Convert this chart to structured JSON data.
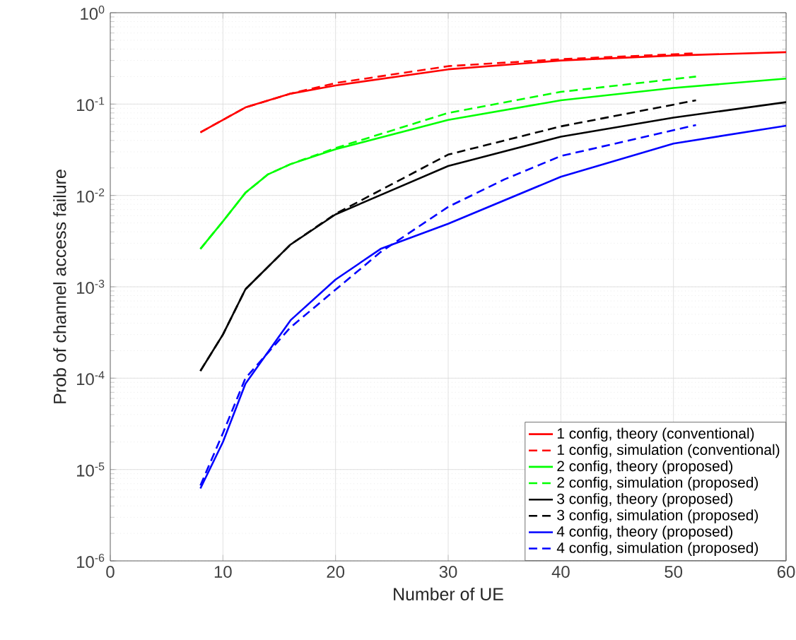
{
  "chart_data": {
    "type": "line",
    "xlabel": "Number of UE",
    "ylabel": "Prob of channel access failure",
    "log": "y",
    "grid": true,
    "legend": "bottom right",
    "xlim": [
      0,
      60
    ],
    "xticks": [
      0,
      10,
      20,
      30,
      40,
      50,
      60
    ],
    "ylim": [
      1e-06,
      1
    ],
    "yticks": [
      {
        "value": 1e-06,
        "label": "10$^{-6}$"
      },
      {
        "value": 1e-05,
        "label": "10$^{-5}$"
      },
      {
        "value": 0.0001,
        "label": "10$^{-4}$"
      },
      {
        "value": 0.001,
        "label": "10$^{-3}$"
      },
      {
        "value": 0.01,
        "label": "10$^{-2}$"
      },
      {
        "value": 0.1,
        "label": "10$^{-1}$"
      },
      {
        "value": 1,
        "label": "10$^{0}$"
      }
    ],
    "series": [
      {
        "name": "1 config, theory (conventional)",
        "color": "#ff0000",
        "line_style": "solid",
        "x": [
          8,
          12,
          16,
          20,
          30,
          40,
          50,
          60
        ],
        "values": [
          0.049,
          0.092,
          0.13,
          0.16,
          0.24,
          0.3,
          0.34,
          0.37
        ]
      },
      {
        "name": "1 config, simulation (conventional)",
        "color": "#ff0000",
        "line_style": "dashed",
        "x": [
          8,
          12,
          16,
          20,
          30,
          40,
          52
        ],
        "values": [
          0.049,
          0.092,
          0.13,
          0.17,
          0.26,
          0.31,
          0.36
        ]
      },
      {
        "name": "2 config, theory (proposed)",
        "color": "#00ff00",
        "line_style": "solid",
        "x": [
          8,
          10,
          12,
          14,
          16,
          20,
          30,
          40,
          50,
          60
        ],
        "values": [
          0.0026,
          0.0052,
          0.0107,
          0.017,
          0.022,
          0.032,
          0.067,
          0.11,
          0.15,
          0.19
        ]
      },
      {
        "name": "2 config, simulation (proposed)",
        "color": "#00ff00",
        "line_style": "dashed",
        "x": [
          8,
          10,
          12,
          14,
          16,
          20,
          30,
          40,
          52
        ],
        "values": [
          0.0026,
          0.0052,
          0.0107,
          0.017,
          0.022,
          0.033,
          0.08,
          0.136,
          0.2
        ]
      },
      {
        "name": "3 config, theory (proposed)",
        "color": "#000000",
        "line_style": "solid",
        "x": [
          8,
          10,
          12,
          16,
          20,
          30,
          40,
          50,
          60
        ],
        "values": [
          0.00012,
          0.0003,
          0.00094,
          0.0029,
          0.0062,
          0.021,
          0.044,
          0.071,
          0.105
        ]
      },
      {
        "name": "3 config, simulation (proposed)",
        "color": "#000000",
        "line_style": "dashed",
        "x": [
          8,
          10,
          12,
          16,
          20,
          30,
          40,
          52
        ],
        "values": [
          0.00012,
          0.0003,
          0.00094,
          0.0029,
          0.0063,
          0.028,
          0.057,
          0.11
        ]
      },
      {
        "name": "4 config, theory (proposed)",
        "color": "#0000ff",
        "line_style": "solid",
        "x": [
          8,
          10,
          12,
          16,
          20,
          24,
          30,
          40,
          50,
          60
        ],
        "values": [
          6.2e-06,
          2e-05,
          8.7e-05,
          0.00043,
          0.0012,
          0.0026,
          0.0049,
          0.016,
          0.037,
          0.058
        ]
      },
      {
        "name": "4 config, simulation (proposed)",
        "color": "#0000ff",
        "line_style": "dashed",
        "x": [
          8,
          10,
          12,
          14,
          16,
          20,
          24,
          30,
          35,
          40,
          52
        ],
        "values": [
          6.7e-06,
          2.5e-05,
          0.0001,
          0.00019,
          0.00036,
          0.00093,
          0.0024,
          0.0075,
          0.015,
          0.027,
          0.059
        ]
      }
    ]
  }
}
